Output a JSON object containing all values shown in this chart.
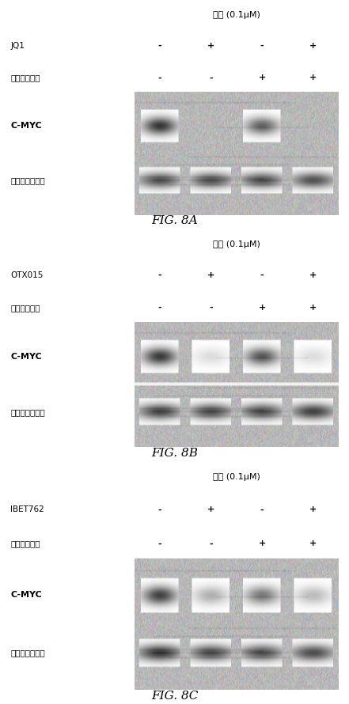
{
  "panels": [
    {
      "fig_label": "FIG. 8A",
      "title": "処置 (0.1μM)",
      "drug1_label": "JQ1",
      "drug2_label": "アルボシジブ",
      "drug1_signs": [
        "-",
        "+",
        "-",
        "+"
      ],
      "drug2_signs": [
        "-",
        "-",
        "+",
        "+"
      ],
      "cmyc_label": "C-MYC",
      "actin_label": "ベータアクチン",
      "cmyc_band_intensities": [
        0.9,
        0.05,
        0.7,
        0.05
      ],
      "actin_band_intensities": [
        0.8,
        0.8,
        0.8,
        0.8
      ],
      "has_divider": false
    },
    {
      "fig_label": "FIG. 8B",
      "title": "処置 (0.1μM)",
      "drug1_label": "OTX015",
      "drug2_label": "アルボシジブ",
      "drug1_signs": [
        "-",
        "+",
        "-",
        "+"
      ],
      "drug2_signs": [
        "-",
        "-",
        "+",
        "+"
      ],
      "cmyc_label": "C-MYC",
      "actin_label": "ベータアクチン",
      "cmyc_band_intensities": [
        0.88,
        0.15,
        0.75,
        0.15
      ],
      "actin_band_intensities": [
        0.85,
        0.82,
        0.82,
        0.88
      ],
      "has_divider": true
    },
    {
      "fig_label": "FIG. 8C",
      "title": "処置 (0.1μM)",
      "drug1_label": "IBET762",
      "drug2_label": "アルボシジブ",
      "drug1_signs": [
        "-",
        "+",
        "-",
        "+"
      ],
      "drug2_signs": [
        "-",
        "-",
        "+",
        "+"
      ],
      "cmyc_label": "C-MYC",
      "actin_label": "ベータアクチン",
      "cmyc_band_intensities": [
        0.85,
        0.35,
        0.6,
        0.3
      ],
      "actin_band_intensities": [
        0.92,
        0.82,
        0.8,
        0.82
      ],
      "has_divider": false
    }
  ],
  "background_color": "#ffffff"
}
